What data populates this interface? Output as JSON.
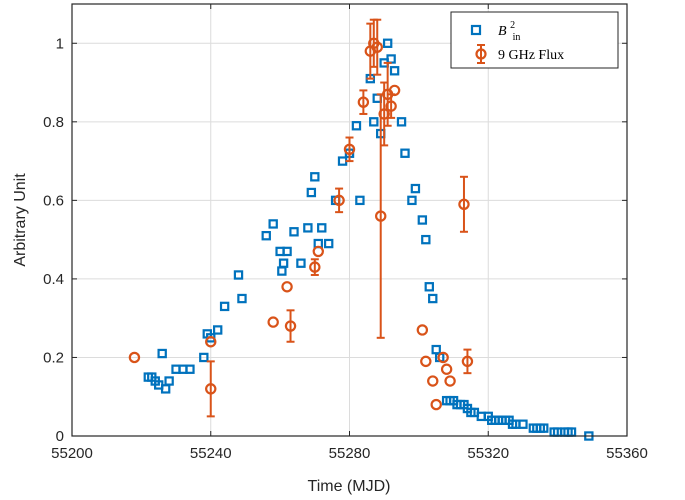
{
  "chart_data": {
    "type": "scatter",
    "xlabel": "Time (MJD)",
    "ylabel": "Arbitrary Unit",
    "xlim": [
      55200,
      55360
    ],
    "ylim": [
      0,
      1.1
    ],
    "xticks": [
      "55200",
      "55240",
      "55280",
      "55320",
      "55360"
    ],
    "xtick_values": [
      55200,
      55240,
      55280,
      55320,
      55360
    ],
    "yticks": [
      "0",
      "0.2",
      "0.4",
      "0.6",
      "0.8",
      "1"
    ],
    "ytick_values": [
      0,
      0.2,
      0.4,
      0.6,
      0.8,
      1.0
    ],
    "grid": true,
    "legend_position": "top-right",
    "series": [
      {
        "name": "B_in^2",
        "legend_main": "B",
        "legend_sup": "2",
        "legend_sub": "in",
        "color": "#0072BD",
        "marker": "square",
        "x": [
          55222,
          55223,
          55224,
          55225,
          55226,
          55227,
          55228,
          55230,
          55232,
          55234,
          55238,
          55239,
          55240,
          55242,
          55244,
          55248,
          55249,
          55256,
          55258,
          55260,
          55260.5,
          55261,
          55262,
          55264,
          55266,
          55268,
          55269,
          55270,
          55271,
          55272,
          55274,
          55276,
          55278,
          55280,
          55282,
          55283,
          55286,
          55287,
          55288,
          55289,
          55290,
          55291,
          55292,
          55293,
          55295,
          55296,
          55298,
          55299,
          55301,
          55302,
          55303,
          55304,
          55305,
          55306,
          55308,
          55309,
          55310,
          55311,
          55312,
          55313,
          55314,
          55315,
          55316,
          55318,
          55320,
          55321,
          55322,
          55323,
          55324,
          55325,
          55326,
          55327,
          55328,
          55330,
          55333,
          55334,
          55335,
          55336,
          55339,
          55340,
          55342,
          55343,
          55344,
          55349
        ],
        "y": [
          0.15,
          0.15,
          0.14,
          0.13,
          0.21,
          0.12,
          0.14,
          0.17,
          0.17,
          0.17,
          0.2,
          0.26,
          0.25,
          0.27,
          0.33,
          0.41,
          0.35,
          0.51,
          0.54,
          0.47,
          0.42,
          0.44,
          0.47,
          0.52,
          0.44,
          0.53,
          0.62,
          0.66,
          0.49,
          0.53,
          0.49,
          0.6,
          0.7,
          0.72,
          0.79,
          0.6,
          0.91,
          0.8,
          0.86,
          0.77,
          0.95,
          1.0,
          0.96,
          0.93,
          0.8,
          0.72,
          0.6,
          0.63,
          0.55,
          0.5,
          0.38,
          0.35,
          0.22,
          0.2,
          0.09,
          0.09,
          0.09,
          0.08,
          0.08,
          0.08,
          0.07,
          0.06,
          0.06,
          0.05,
          0.05,
          0.04,
          0.04,
          0.04,
          0.04,
          0.04,
          0.04,
          0.03,
          0.03,
          0.03,
          0.02,
          0.02,
          0.02,
          0.02,
          0.01,
          0.01,
          0.01,
          0.01,
          0.01,
          0.0
        ]
      },
      {
        "name": "9 GHz Flux",
        "color": "#D95319",
        "marker": "circle-errorbar",
        "x": [
          55218,
          55240,
          55240,
          55258,
          55262,
          55263,
          55270,
          55271,
          55277,
          55280,
          55284,
          55286,
          55287,
          55288,
          55289,
          55290,
          55291,
          55292,
          55293,
          55301,
          55302,
          55304,
          55305,
          55307,
          55308,
          55309,
          55313,
          55314
        ],
        "y": [
          0.2,
          0.12,
          0.24,
          0.29,
          0.38,
          0.28,
          0.43,
          0.47,
          0.6,
          0.73,
          0.85,
          0.98,
          1.0,
          0.99,
          0.56,
          0.82,
          0.87,
          0.84,
          0.88,
          0.27,
          0.19,
          0.14,
          0.08,
          0.2,
          0.17,
          0.14,
          0.59,
          0.19
        ],
        "yerr": [
          0,
          0.07,
          0,
          0,
          0,
          0.04,
          0.02,
          0,
          0.03,
          0.03,
          0.03,
          0.07,
          0.06,
          0.07,
          0.31,
          0.08,
          0.08,
          0.03,
          0,
          0,
          0,
          0,
          0,
          0,
          0,
          0,
          0.07,
          0.03
        ]
      }
    ]
  }
}
